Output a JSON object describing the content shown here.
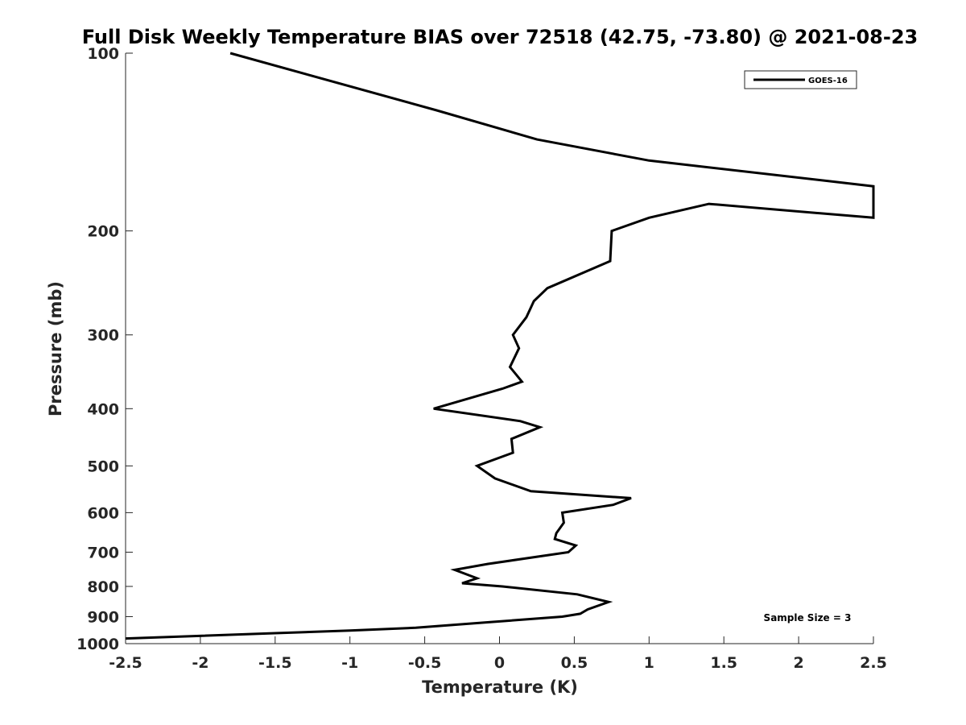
{
  "chart_data": {
    "type": "line",
    "title": "Full Disk Weekly Temperature BIAS over 72518 (42.75, -73.80) @ 2021-08-23",
    "xlabel": "Temperature (K)",
    "ylabel": "Pressure (mb)",
    "xlim": [
      -2.5,
      2.5
    ],
    "ylim": [
      100,
      1000
    ],
    "y_scale": "log",
    "y_reversed": true,
    "xticks": [
      -2.5,
      -2,
      -1.5,
      -1,
      -0.5,
      0,
      0.5,
      1,
      1.5,
      2,
      2.5
    ],
    "xtick_labels": [
      "-2.5",
      "-2",
      "-1.5",
      "-1",
      "-0.5",
      "0",
      "0.5",
      "1",
      "1.5",
      "2",
      "2.5"
    ],
    "yticks": [
      100,
      200,
      300,
      400,
      500,
      600,
      700,
      800,
      900,
      1000
    ],
    "ytick_labels": [
      "100",
      "200",
      "300",
      "400",
      "500",
      "600",
      "700",
      "800",
      "900",
      "1000"
    ],
    "grid": false,
    "legend_position": "top-right",
    "annotation": "Sample Size = 3",
    "series": [
      {
        "name": "GOES-16",
        "color": "#000000",
        "points": [
          [
            -1.8,
            100
          ],
          [
            -0.42,
            125
          ],
          [
            0.25,
            140
          ],
          [
            1.0,
            152
          ],
          [
            2.5,
            168
          ],
          [
            2.5,
            190
          ],
          [
            1.4,
            180
          ],
          [
            1.0,
            190
          ],
          [
            0.75,
            200
          ],
          [
            0.74,
            225
          ],
          [
            0.32,
            250
          ],
          [
            0.23,
            263
          ],
          [
            0.18,
            280
          ],
          [
            0.09,
            300
          ],
          [
            0.13,
            316
          ],
          [
            0.07,
            340
          ],
          [
            0.15,
            360
          ],
          [
            0.02,
            370
          ],
          [
            -0.44,
            400
          ],
          [
            0.14,
            420
          ],
          [
            0.27,
            430
          ],
          [
            0.08,
            450
          ],
          [
            0.09,
            475
          ],
          [
            -0.15,
            500
          ],
          [
            -0.03,
            525
          ],
          [
            0.21,
            552
          ],
          [
            0.88,
            567
          ],
          [
            0.76,
            582
          ],
          [
            0.42,
            600
          ],
          [
            0.43,
            624
          ],
          [
            0.38,
            650
          ],
          [
            0.37,
            665
          ],
          [
            0.51,
            682
          ],
          [
            0.46,
            700
          ],
          [
            -0.08,
            733
          ],
          [
            -0.3,
            750
          ],
          [
            -0.15,
            775
          ],
          [
            -0.25,
            790
          ],
          [
            0.02,
            800
          ],
          [
            0.52,
            825
          ],
          [
            0.73,
            850
          ],
          [
            0.59,
            875
          ],
          [
            0.54,
            890
          ],
          [
            0.42,
            900
          ],
          [
            -0.08,
            920
          ],
          [
            -0.56,
            940
          ],
          [
            -1.0,
            950
          ],
          [
            -1.5,
            960
          ],
          [
            -2.5,
            980
          ]
        ]
      }
    ]
  }
}
